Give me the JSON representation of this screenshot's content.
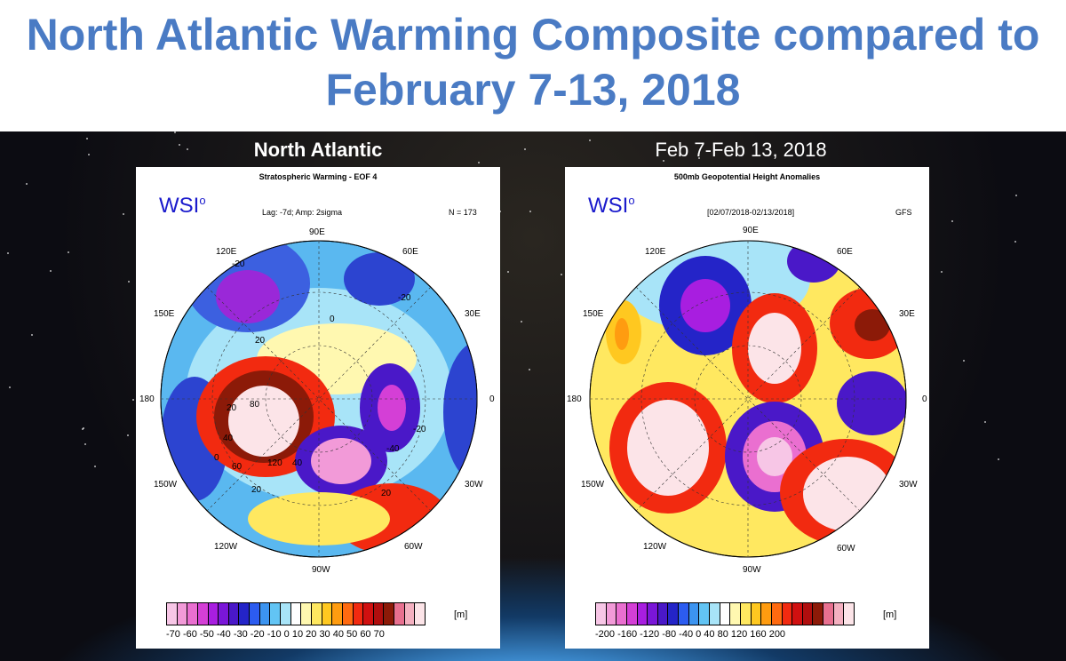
{
  "title_line1": "North Atlantic Warming Composite compared to",
  "title_line2": "February 7-13, 2018",
  "left": {
    "header": "North Atlantic",
    "map_title": "Stratospheric Warming - EOF 4",
    "logo": "WSI",
    "logo_sup": "o",
    "params": "Lag: -7d; Amp: 2sigma",
    "count": "N = 173",
    "lon_labels": [
      "90E",
      "60E",
      "30E",
      "0",
      "30W",
      "60W",
      "90W",
      "120W",
      "150W",
      "180",
      "150E",
      "120E"
    ],
    "contour_labels": [
      "-20",
      "20",
      "0",
      "-20",
      "20",
      "80",
      "40",
      "120",
      "60",
      "20",
      "-40",
      "-20",
      "40",
      "0",
      "20"
    ],
    "colorbar_labels": "-70 -60 -50 -40 -30 -20 -10  0  10  20  30  40  50  60  70",
    "unit": "[m]"
  },
  "right": {
    "header": "Feb 7-Feb 13, 2018",
    "map_title": "500mb Geopotential Height Anomalies",
    "logo": "WSI",
    "logo_sup": "o",
    "dates": "[02/07/2018-02/13/2018]",
    "model": "GFS",
    "lon_labels": [
      "90E",
      "60E",
      "30E",
      "0",
      "30W",
      "60W",
      "90W",
      "120W",
      "150W",
      "180",
      "150E",
      "120E"
    ],
    "colorbar_labels": "-200 -160 -120  -80  -40   0   40   80  120  160  200",
    "unit": "[m]"
  },
  "colors": {
    "title": "#4a7bc4",
    "colorbar": [
      "#f7c6e6",
      "#f29ad8",
      "#ea6fd0",
      "#d43fd6",
      "#a81ee0",
      "#7a16d8",
      "#4a18c8",
      "#2424c8",
      "#2c5cf0",
      "#3c94f0",
      "#62c4f4",
      "#a8e4f8",
      "#ffffff",
      "#fff8b0",
      "#ffe860",
      "#ffc820",
      "#ff9c10",
      "#ff6a10",
      "#f22a10",
      "#d01010",
      "#b00e0e",
      "#8c1a08",
      "#e87090",
      "#f4b0c0",
      "#fce4e8"
    ]
  }
}
